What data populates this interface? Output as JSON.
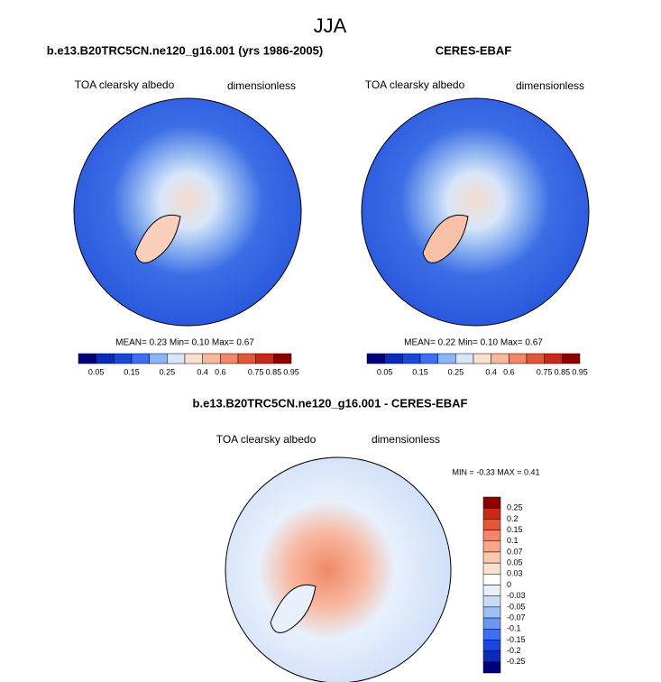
{
  "title": "JJA",
  "panels": [
    {
      "title": "b.e13.B20TRC5CN.ne120_g16.001 (yrs 1986-2005)",
      "variable": "TOA clearsky albedo",
      "units": "dimensionless",
      "stats": "MEAN=  0.23  Min=  0.10  Max=  0.67",
      "colorbar_labels": [
        "0.05",
        "0.15",
        "0.25",
        "0.4",
        "0.6",
        "0.75",
        "0.85",
        "0.95"
      ]
    },
    {
      "title": "CERES-EBAF",
      "variable": "TOA clearsky albedo",
      "units": "dimensionless",
      "stats": "MEAN=  0.22  Min=  0.10  Max=  0.67",
      "colorbar_labels": [
        "0.05",
        "0.15",
        "0.25",
        "0.4",
        "0.6",
        "0.75",
        "0.85",
        "0.95"
      ]
    }
  ],
  "difference": {
    "title": "b.e13.B20TRC5CN.ne120_g16.001 - CERES-EBAF",
    "variable": "TOA clearsky albedo",
    "units": "dimensionless",
    "stats": "MIN =  -0.33 MAX =   0.41",
    "colorbar_labels": [
      "0.25",
      "0.2",
      "0.15",
      "0.1",
      "0.07",
      "0.05",
      "0.03",
      "0",
      "-0.03",
      "-0.05",
      "-0.07",
      "-0.1",
      "-0.15",
      "-0.2",
      "-0.25"
    ]
  }
}
